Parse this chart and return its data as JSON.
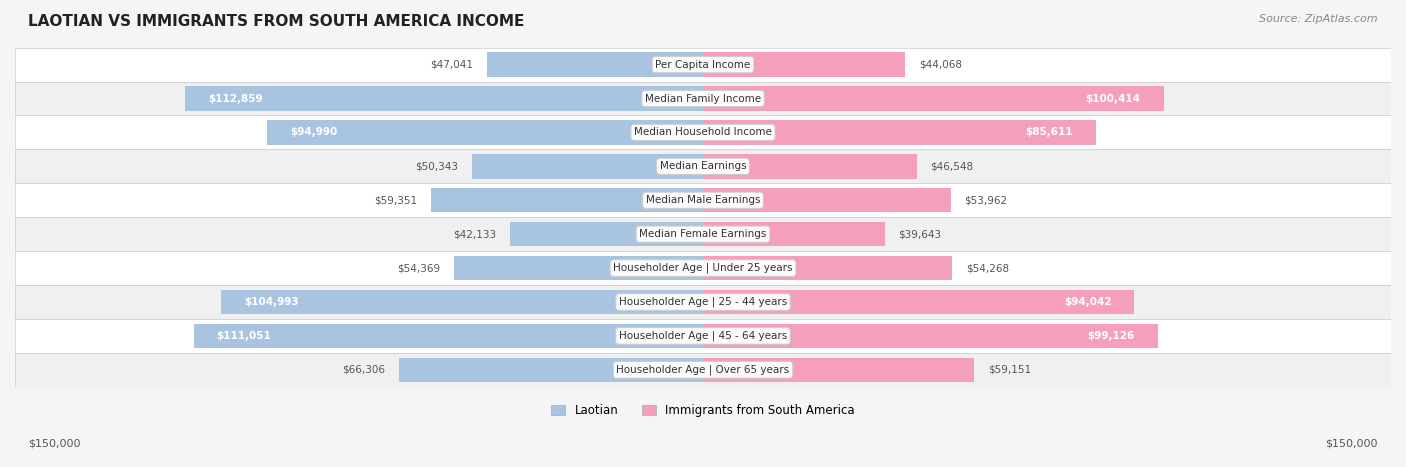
{
  "title": "LAOTIAN VS IMMIGRANTS FROM SOUTH AMERICA INCOME",
  "source": "Source: ZipAtlas.com",
  "categories": [
    "Per Capita Income",
    "Median Family Income",
    "Median Household Income",
    "Median Earnings",
    "Median Male Earnings",
    "Median Female Earnings",
    "Householder Age | Under 25 years",
    "Householder Age | 25 - 44 years",
    "Householder Age | 45 - 64 years",
    "Householder Age | Over 65 years"
  ],
  "laotian_values": [
    47041,
    112859,
    94990,
    50343,
    59351,
    42133,
    54369,
    104993,
    111051,
    66306
  ],
  "south_america_values": [
    44068,
    100414,
    85611,
    46548,
    53962,
    39643,
    54268,
    94042,
    99126,
    59151
  ],
  "laotian_color": "#a8c4e0",
  "laotian_color_dark": "#7bafd4",
  "south_america_color": "#f4a0bb",
  "south_america_color_dark": "#f07090",
  "max_value": 150000,
  "label_color_threshold": 80000,
  "background_color": "#f5f5f5",
  "row_bg_color": "#ffffff",
  "row_alt_bg_color": "#f0f0f0",
  "xlabel_left": "$150,000",
  "xlabel_right": "$150,000"
}
